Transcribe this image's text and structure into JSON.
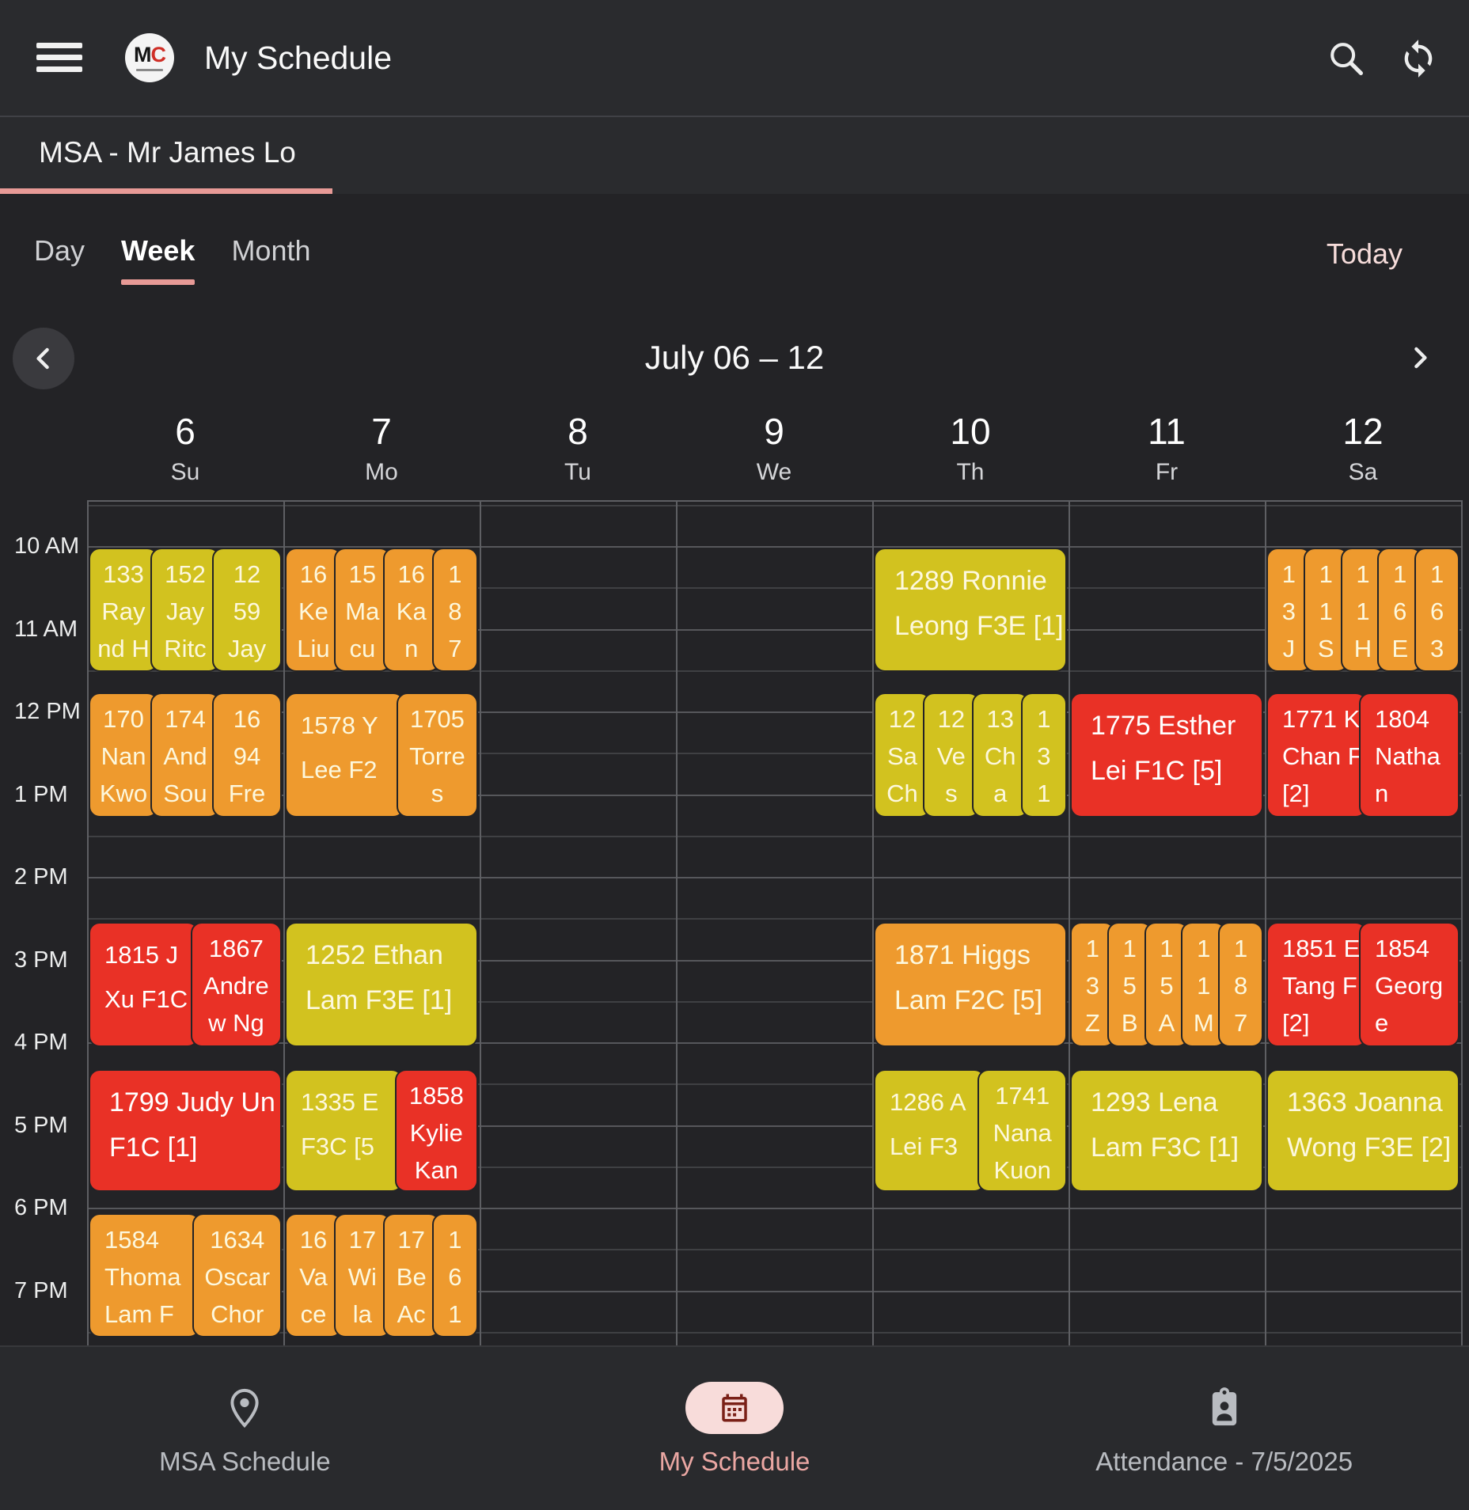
{
  "app_bar": {
    "title": "My Schedule",
    "logo_m": "M",
    "logo_c": "C"
  },
  "tab_bar": {
    "label": "MSA - Mr James Lo"
  },
  "view_switcher": {
    "tabs": [
      "Day",
      "Week",
      "Month"
    ],
    "active": "Week",
    "today_label": "Today"
  },
  "week_nav": {
    "range_label": "July 06 – 12"
  },
  "day_headers": [
    {
      "num": "6",
      "abbr": "Su"
    },
    {
      "num": "7",
      "abbr": "Mo"
    },
    {
      "num": "8",
      "abbr": "Tu"
    },
    {
      "num": "9",
      "abbr": "We"
    },
    {
      "num": "10",
      "abbr": "Th"
    },
    {
      "num": "11",
      "abbr": "Fr"
    },
    {
      "num": "12",
      "abbr": "Sa"
    }
  ],
  "time_labels": [
    "10 AM",
    "11 AM",
    "12 PM",
    "1 PM",
    "2 PM",
    "3 PM",
    "4 PM",
    "5 PM",
    "6 PM",
    "7 PM"
  ],
  "colors": {
    "accent_pink": "#e79a96",
    "event_yellow": "#d2c21f",
    "event_orange": "#ee9a2e",
    "event_red": "#e93126",
    "active_nav_pill": "#f8dcda"
  },
  "icons": {
    "menu": "hamburger-icon",
    "search": "search-icon",
    "sync": "sync-icon",
    "prev": "chevron-left-icon",
    "next": "chevron-right-icon",
    "nav": [
      "location-pin-icon",
      "calendar-icon",
      "attendance-badge-icon"
    ]
  },
  "events": [
    {
      "day": 0,
      "slot": "r1",
      "blocks": [
        {
          "c": "yellow",
          "lines": [
            "133",
            "Ray",
            "nd H"
          ]
        },
        {
          "c": "yellow",
          "lines": [
            "152",
            "Jay",
            "Ritc"
          ]
        },
        {
          "c": "yellow",
          "lines": [
            "12",
            "59",
            "Jay"
          ]
        }
      ]
    },
    {
      "day": 0,
      "slot": "r2",
      "blocks": [
        {
          "c": "orange",
          "lines": [
            "170",
            "Nan",
            "Kwo"
          ]
        },
        {
          "c": "orange",
          "lines": [
            "174",
            "And",
            "Sou"
          ]
        },
        {
          "c": "orange",
          "lines": [
            "16",
            "94",
            "Fre"
          ]
        }
      ]
    },
    {
      "day": 0,
      "slot": "r3",
      "blocks": [
        {
          "c": "red",
          "lines": [
            "1815 J",
            "Xu F1C"
          ],
          "flex": 1.05,
          "align": "left"
        },
        {
          "c": "red",
          "lines": [
            "1867",
            "Andre",
            "w Ng"
          ]
        }
      ]
    },
    {
      "day": 0,
      "slot": "r4",
      "blocks": [
        {
          "c": "red",
          "lines": [
            "1799 Judy Un",
            "F1C [1]"
          ],
          "wide": true
        }
      ]
    },
    {
      "day": 0,
      "slot": "r5",
      "blocks": [
        {
          "c": "orange",
          "lines": [
            "1584",
            "Thoma",
            "Lam F"
          ],
          "flex": 1.1,
          "align": "left"
        },
        {
          "c": "orange",
          "lines": [
            "1634",
            "Oscar",
            "Chor"
          ]
        }
      ]
    },
    {
      "day": 1,
      "slot": "r1",
      "blocks": [
        {
          "c": "orange",
          "lines": [
            "16",
            "Ke",
            "Liu"
          ]
        },
        {
          "c": "orange",
          "lines": [
            "15",
            "Ma",
            "cu"
          ]
        },
        {
          "c": "orange",
          "lines": [
            "16",
            "Ka",
            "n"
          ]
        },
        {
          "c": "orange",
          "lines": [
            "1",
            "8",
            "7"
          ],
          "flex": 0.8
        }
      ]
    },
    {
      "day": 1,
      "slot": "r2",
      "blocks": [
        {
          "c": "orange",
          "lines": [
            "1578 Y",
            "Lee F2"
          ],
          "flex": 1.3,
          "align": "left"
        },
        {
          "c": "orange",
          "lines": [
            "1705",
            "Torre",
            "s"
          ]
        }
      ]
    },
    {
      "day": 1,
      "slot": "r3",
      "blocks": [
        {
          "c": "yellow",
          "lines": [
            "1252 Ethan",
            "Lam F3E [1]"
          ],
          "wide": true
        }
      ]
    },
    {
      "day": 1,
      "slot": "r4",
      "blocks": [
        {
          "c": "yellow",
          "lines": [
            "1335 E",
            "F3C [5"
          ],
          "flex": 1.25,
          "align": "left"
        },
        {
          "c": "red",
          "lines": [
            "1858",
            "Kylie",
            "Kan"
          ]
        }
      ]
    },
    {
      "day": 1,
      "slot": "r5",
      "blocks": [
        {
          "c": "orange",
          "lines": [
            "16",
            "Va",
            "ce"
          ]
        },
        {
          "c": "orange",
          "lines": [
            "17",
            "Wi",
            "la"
          ]
        },
        {
          "c": "orange",
          "lines": [
            "17",
            "Be",
            "Ac"
          ]
        },
        {
          "c": "orange",
          "lines": [
            "1",
            "6",
            "1"
          ],
          "flex": 0.8
        }
      ]
    },
    {
      "day": 4,
      "slot": "r1",
      "blocks": [
        {
          "c": "yellow",
          "lines": [
            "1289 Ronnie",
            "Leong F3E [1]"
          ],
          "wide": true
        }
      ]
    },
    {
      "day": 4,
      "slot": "r2",
      "blocks": [
        {
          "c": "yellow",
          "lines": [
            "12",
            "Sa",
            "Ch"
          ]
        },
        {
          "c": "yellow",
          "lines": [
            "12",
            "Ve",
            "s"
          ]
        },
        {
          "c": "yellow",
          "lines": [
            "13",
            "Ch",
            "a"
          ]
        },
        {
          "c": "yellow",
          "lines": [
            "1",
            "3",
            "1"
          ],
          "flex": 0.8
        }
      ]
    },
    {
      "day": 4,
      "slot": "r3",
      "blocks": [
        {
          "c": "orange",
          "lines": [
            "1871 Higgs",
            "Lam F2C [5]"
          ],
          "wide": true
        }
      ]
    },
    {
      "day": 4,
      "slot": "r4",
      "blocks": [
        {
          "c": "yellow",
          "lines": [
            "1286 A",
            "Lei F3"
          ],
          "flex": 1.1,
          "align": "left"
        },
        {
          "c": "yellow",
          "lines": [
            "1741",
            "Nana",
            "Kuon"
          ]
        }
      ]
    },
    {
      "day": 5,
      "slot": "r2",
      "blocks": [
        {
          "c": "red",
          "lines": [
            "1775 Esther",
            "Lei F1C [5]"
          ],
          "wide": true
        }
      ]
    },
    {
      "day": 5,
      "slot": "r3",
      "blocks": [
        {
          "c": "orange",
          "lines": [
            "1",
            "3",
            "Z"
          ]
        },
        {
          "c": "orange",
          "lines": [
            "1",
            "5",
            "B"
          ]
        },
        {
          "c": "orange",
          "lines": [
            "1",
            "5",
            "A"
          ]
        },
        {
          "c": "orange",
          "lines": [
            "1",
            "1",
            "M"
          ]
        },
        {
          "c": "orange",
          "lines": [
            "1",
            "8",
            "7"
          ]
        }
      ]
    },
    {
      "day": 5,
      "slot": "r4",
      "blocks": [
        {
          "c": "yellow",
          "lines": [
            "1293 Lena",
            "Lam F3C [1]"
          ],
          "wide": true
        }
      ]
    },
    {
      "day": 6,
      "slot": "r1",
      "blocks": [
        {
          "c": "orange",
          "lines": [
            "1",
            "3",
            "J"
          ]
        },
        {
          "c": "orange",
          "lines": [
            "1",
            "1",
            "S"
          ]
        },
        {
          "c": "orange",
          "lines": [
            "1",
            "1",
            "H"
          ]
        },
        {
          "c": "orange",
          "lines": [
            "1",
            "6",
            "E"
          ]
        },
        {
          "c": "orange",
          "lines": [
            "1",
            "6",
            "3"
          ]
        }
      ]
    },
    {
      "day": 6,
      "slot": "r2",
      "blocks": [
        {
          "c": "red",
          "lines": [
            "1771 K",
            "Chan F",
            "[2]"
          ],
          "align": "left"
        },
        {
          "c": "red",
          "lines": [
            "1804",
            "Natha",
            "n"
          ],
          "align": "left"
        }
      ]
    },
    {
      "day": 6,
      "slot": "r3",
      "blocks": [
        {
          "c": "red",
          "lines": [
            "1851 E",
            "Tang F",
            "[2]"
          ],
          "align": "left"
        },
        {
          "c": "red",
          "lines": [
            "1854",
            "Georg",
            "e"
          ],
          "align": "left"
        }
      ]
    },
    {
      "day": 6,
      "slot": "r4",
      "blocks": [
        {
          "c": "yellow",
          "lines": [
            "1363 Joanna",
            "Wong F3E [2]"
          ],
          "wide": true
        }
      ]
    }
  ],
  "bottom_nav": [
    {
      "label": "MSA Schedule",
      "active": false
    },
    {
      "label": "My Schedule",
      "active": true
    },
    {
      "label": "Attendance - 7/5/2025",
      "active": false
    }
  ]
}
